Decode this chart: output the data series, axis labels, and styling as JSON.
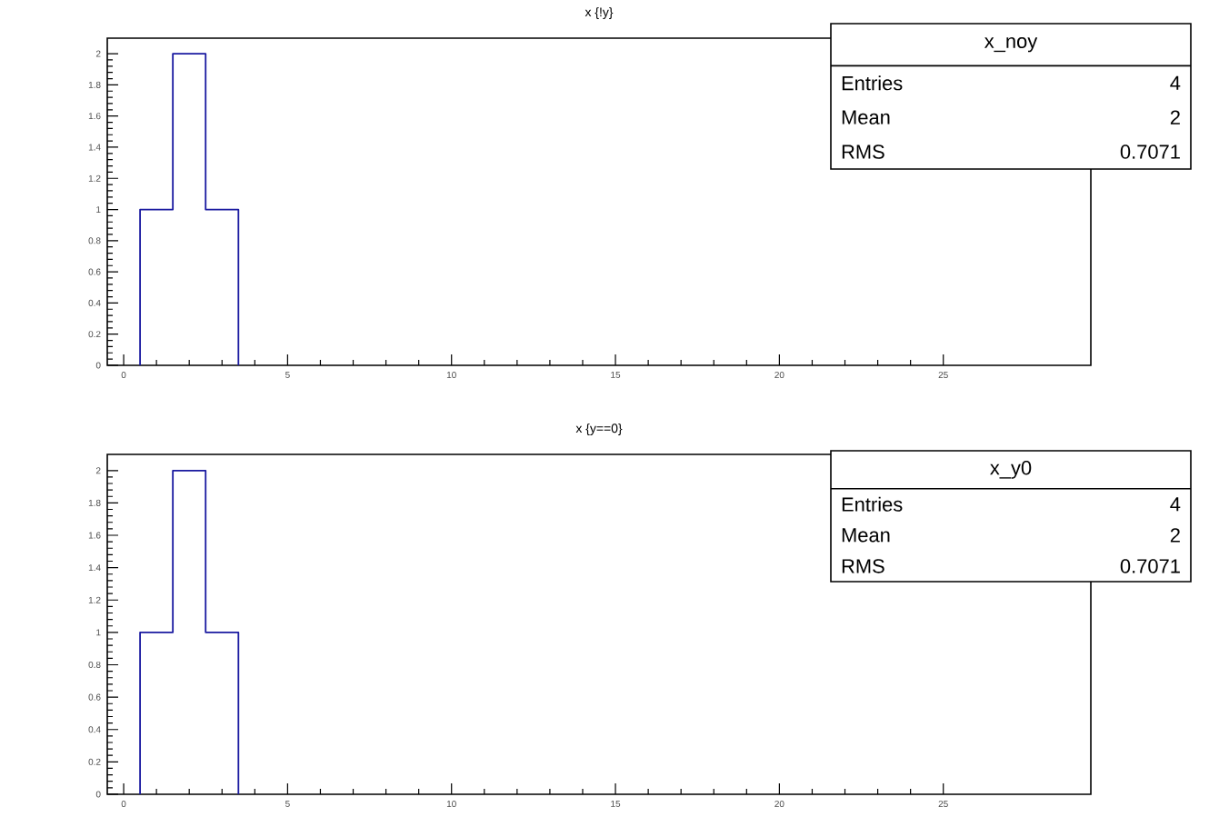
{
  "chart_data": [
    {
      "type": "histogram",
      "title": "x {!y}",
      "bins": [
        0.5,
        1.5,
        2.5,
        3.5
      ],
      "values": [
        1,
        2,
        1
      ],
      "color": "#1a1aa0",
      "xlim": [
        -0.5,
        29.5
      ],
      "ylim": [
        0,
        2.1
      ],
      "xticks": [
        0,
        5,
        10,
        15,
        20,
        25
      ],
      "yticks": [
        0,
        0.2,
        0.4,
        0.6,
        0.8,
        1,
        1.2,
        1.4,
        1.6,
        1.8,
        2
      ],
      "annotations": [
        "x_noy",
        "Entries",
        "4",
        "Mean",
        "2",
        "RMS",
        "0.7071"
      ]
    },
    {
      "type": "histogram",
      "title": "x {y==0}",
      "bins": [
        0.5,
        1.5,
        2.5,
        3.5
      ],
      "values": [
        1,
        2,
        1
      ],
      "color": "#1a1aa0",
      "xlim": [
        -0.5,
        29.5
      ],
      "ylim": [
        0,
        2.1
      ],
      "xticks": [
        0,
        5,
        10,
        15,
        20,
        25
      ],
      "yticks": [
        0,
        0.2,
        0.4,
        0.6,
        0.8,
        1,
        1.2,
        1.4,
        1.6,
        1.8,
        2
      ],
      "annotations": [
        "x_y0",
        "Entries",
        "4",
        "Mean",
        "2",
        "RMS",
        "0.7071"
      ]
    }
  ]
}
